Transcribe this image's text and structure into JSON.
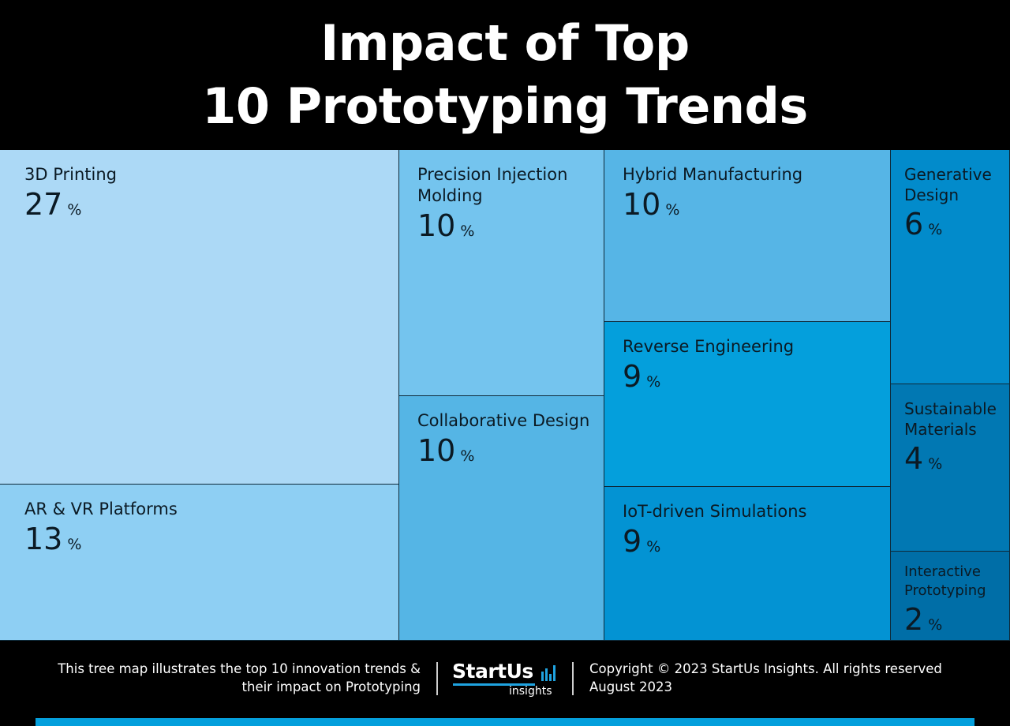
{
  "title": {
    "line1": "Impact of Top",
    "line2": "10 Prototyping Trends"
  },
  "chart_data": {
    "type": "treemap",
    "title": "Impact of Top 10 Prototyping Trends",
    "unit": "%",
    "items": [
      {
        "name": "3D Printing",
        "value": 27,
        "color": "#acd9f6"
      },
      {
        "name": "AR & VR Platforms",
        "value": 13,
        "color": "#8ecff3"
      },
      {
        "name": "Precision Injection\nMolding",
        "value": 10,
        "color": "#74c4ee"
      },
      {
        "name": "Collaborative Design",
        "value": 10,
        "color": "#55b5e5"
      },
      {
        "name": "Hybrid Manufacturing",
        "value": 10,
        "color": "#56b5e6"
      },
      {
        "name": "Reverse Engineering",
        "value": 9,
        "color": "#049fdc"
      },
      {
        "name": "IoT-driven Simulations",
        "value": 9,
        "color": "#0393d3"
      },
      {
        "name": "Generative\nDesign",
        "value": 6,
        "color": "#028bcb"
      },
      {
        "name": "Sustainable\nMaterials",
        "value": 4,
        "color": "#0178b3"
      },
      {
        "name": "Interactive\nPrototyping",
        "value": 2,
        "color": "#006ea7"
      }
    ]
  },
  "footer": {
    "description_line1": "This tree map illustrates the top 10 innovation trends &",
    "description_line2": "their impact on Prototyping",
    "logo_main": "StartUs",
    "logo_sub": "insights",
    "copyright": "Copyright © 2023 StartUs Insights. All rights reserved",
    "date": "August 2023"
  },
  "colors": {
    "background": "#000000",
    "accent": "#1fa3e0",
    "bottom_bar": "#049fdc"
  }
}
